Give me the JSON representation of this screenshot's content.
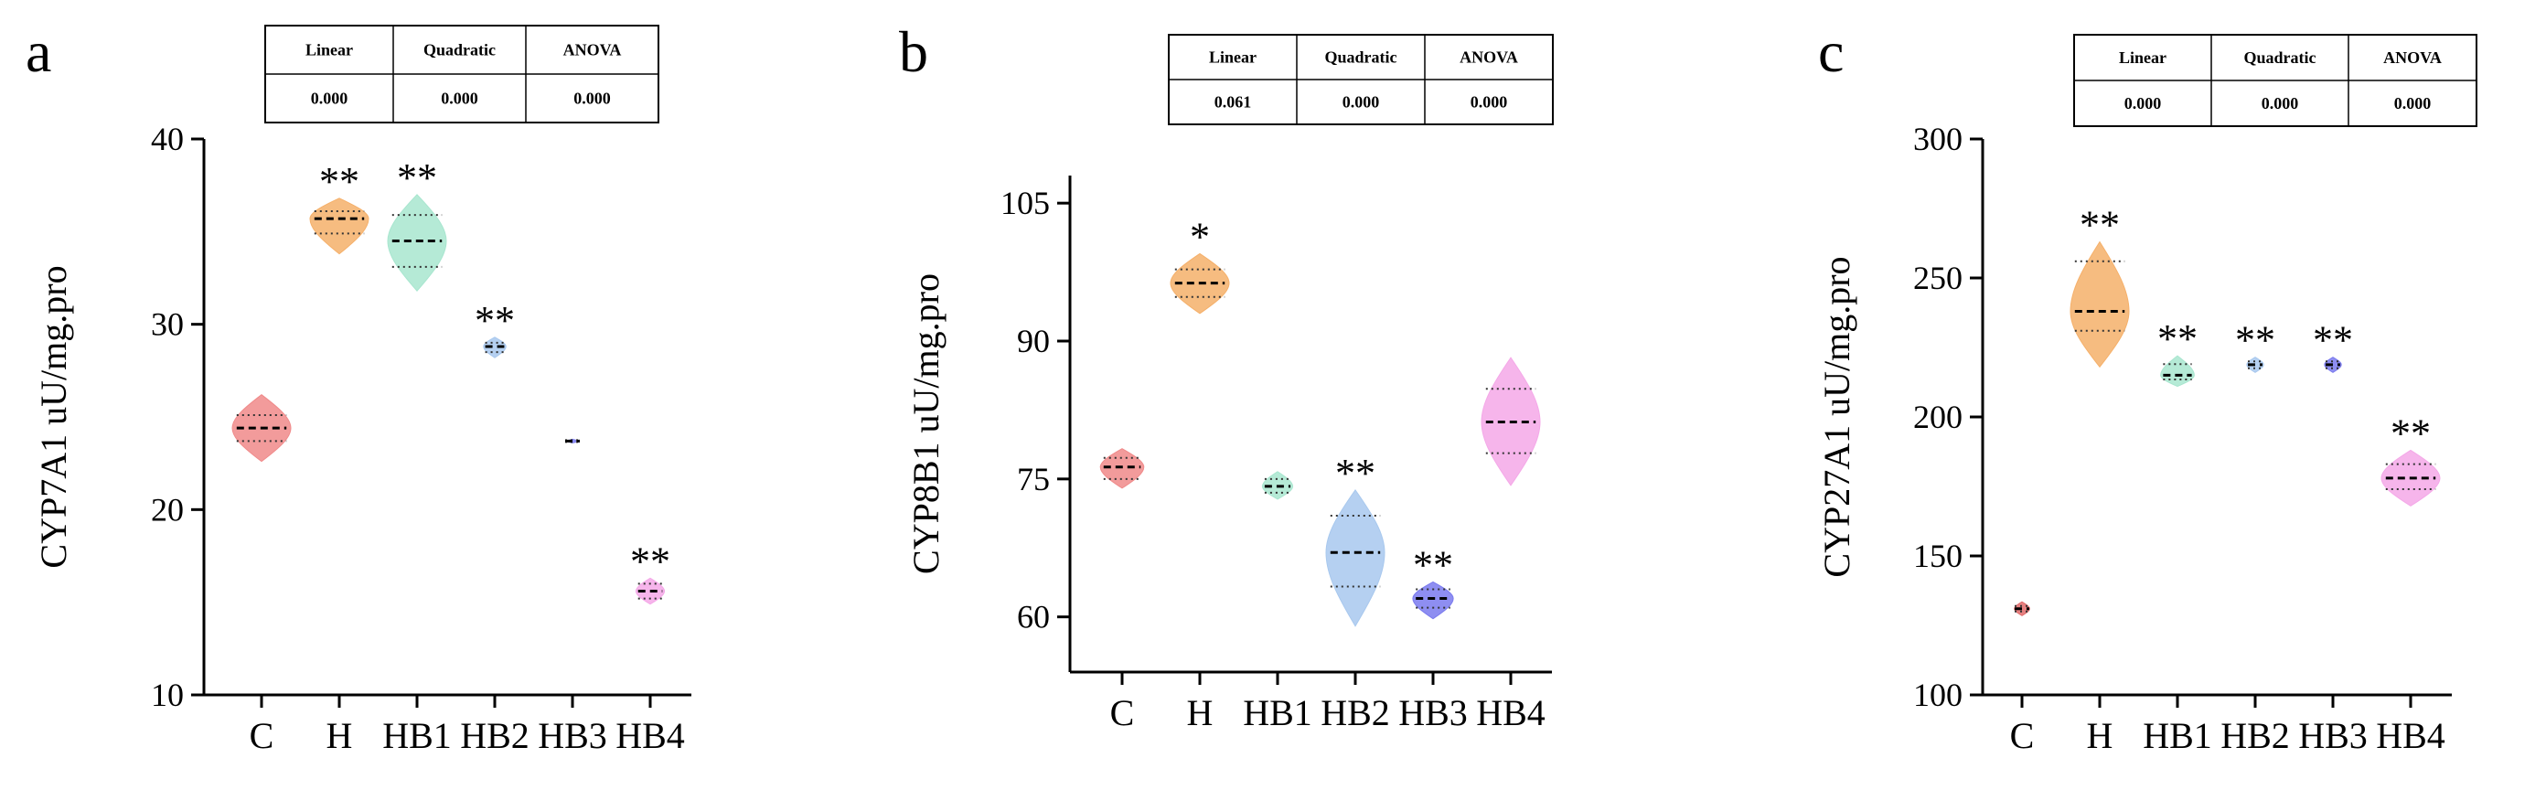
{
  "chart_data": [
    {
      "type": "violin",
      "panel_label": "a",
      "ylabel": "CYP7A1   uU/mg.pro",
      "ylim": [
        10,
        40
      ],
      "yticks": [
        10,
        20,
        30,
        40
      ],
      "categories": [
        "C",
        "H",
        "HB1",
        "HB2",
        "HB3",
        "HB4"
      ],
      "colors": [
        "#f08a8a",
        "#f5b06a",
        "#a8e6cf",
        "#a8c8ee",
        "#7a7aee",
        "#f4a8e8"
      ],
      "groups": [
        {
          "name": "C",
          "median": 24.4,
          "q1": 23.7,
          "q3": 25.1,
          "min": 22.6,
          "max": 26.2,
          "sig": ""
        },
        {
          "name": "H",
          "median": 35.7,
          "q1": 34.9,
          "q3": 36.1,
          "min": 33.8,
          "max": 36.8,
          "sig": "**"
        },
        {
          "name": "HB1",
          "median": 34.5,
          "q1": 33.1,
          "q3": 35.9,
          "min": 31.8,
          "max": 37.0,
          "sig": "**"
        },
        {
          "name": "HB2",
          "median": 28.8,
          "q1": 28.5,
          "q3": 29.0,
          "min": 28.2,
          "max": 29.3,
          "sig": "**"
        },
        {
          "name": "HB3",
          "median": 23.7,
          "q1": 23.65,
          "q3": 23.75,
          "min": 23.6,
          "max": 23.8,
          "sig": ""
        },
        {
          "name": "HB4",
          "median": 15.6,
          "q1": 15.2,
          "q3": 16.0,
          "min": 14.9,
          "max": 16.3,
          "sig": "**"
        }
      ],
      "stats_table": {
        "headers": [
          "Linear",
          "Quadratic",
          "ANOVA"
        ],
        "values": [
          "0.000",
          "0.000",
          "0.000"
        ]
      }
    },
    {
      "type": "violin",
      "panel_label": "b",
      "ylabel": "CYP8B1   uU/mg.pro",
      "ylim": [
        54,
        108
      ],
      "yticks": [
        60,
        75,
        90,
        105
      ],
      "categories": [
        "C",
        "H",
        "HB1",
        "HB2",
        "HB3",
        "HB4"
      ],
      "colors": [
        "#f08a8a",
        "#f5b06a",
        "#a8e6cf",
        "#a8c8ee",
        "#7a7aee",
        "#f4a8e8"
      ],
      "groups": [
        {
          "name": "C",
          "median": 76.3,
          "q1": 75.0,
          "q3": 77.3,
          "min": 74.0,
          "max": 78.3,
          "sig": ""
        },
        {
          "name": "H",
          "median": 96.3,
          "q1": 94.8,
          "q3": 97.8,
          "min": 93.0,
          "max": 99.5,
          "sig": "*"
        },
        {
          "name": "HB1",
          "median": 74.2,
          "q1": 73.5,
          "q3": 75.0,
          "min": 72.8,
          "max": 75.8,
          "sig": ""
        },
        {
          "name": "HB2",
          "median": 67.0,
          "q1": 63.3,
          "q3": 71.0,
          "min": 59.0,
          "max": 73.8,
          "sig": "**"
        },
        {
          "name": "HB3",
          "median": 62.0,
          "q1": 61.0,
          "q3": 63.0,
          "min": 59.8,
          "max": 63.8,
          "sig": "**"
        },
        {
          "name": "HB4",
          "median": 81.2,
          "q1": 77.8,
          "q3": 84.8,
          "min": 74.3,
          "max": 88.2,
          "sig": ""
        }
      ],
      "stats_table": {
        "headers": [
          "Linear",
          "Quadratic",
          "ANOVA"
        ],
        "values": [
          "0.061",
          "0.000",
          "0.000"
        ]
      }
    },
    {
      "type": "violin",
      "panel_label": "c",
      "ylabel": "CYP27A1   uU/mg.pro",
      "ylim": [
        100,
        300
      ],
      "yticks": [
        100,
        150,
        200,
        250,
        300
      ],
      "categories": [
        "C",
        "H",
        "HB1",
        "HB2",
        "HB3",
        "HB4"
      ],
      "colors": [
        "#e06a6a",
        "#f5b06a",
        "#a8e6cf",
        "#a8c8ee",
        "#7a7aee",
        "#f4a8e8"
      ],
      "groups": [
        {
          "name": "C",
          "median": 131.0,
          "q1": 130.0,
          "q3": 132.0,
          "min": 128.5,
          "max": 133.5,
          "sig": ""
        },
        {
          "name": "H",
          "median": 238.0,
          "q1": 231.0,
          "q3": 256.0,
          "min": 218.0,
          "max": 263.0,
          "sig": "**"
        },
        {
          "name": "HB1",
          "median": 215.0,
          "q1": 213.5,
          "q3": 219.0,
          "min": 211.0,
          "max": 222.0,
          "sig": "**"
        },
        {
          "name": "HB2",
          "median": 218.8,
          "q1": 217.5,
          "q3": 220.0,
          "min": 216.0,
          "max": 221.5,
          "sig": "**"
        },
        {
          "name": "HB3",
          "median": 218.8,
          "q1": 217.5,
          "q3": 220.0,
          "min": 216.0,
          "max": 221.5,
          "sig": "**"
        },
        {
          "name": "HB4",
          "median": 178.0,
          "q1": 174.0,
          "q3": 183.0,
          "min": 168.0,
          "max": 188.0,
          "sig": "**"
        }
      ],
      "stats_table": {
        "headers": [
          "Linear",
          "Quadratic",
          "ANOVA"
        ],
        "values": [
          "0.000",
          "0.000",
          "0.000"
        ]
      }
    }
  ]
}
